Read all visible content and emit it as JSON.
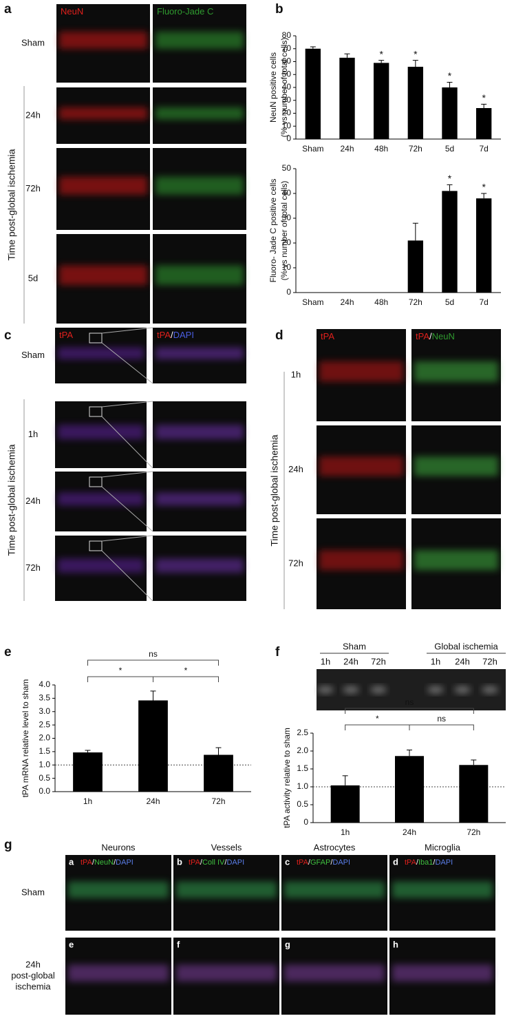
{
  "panel_labels": [
    "a",
    "b",
    "c",
    "d",
    "e",
    "f",
    "g"
  ],
  "panel_a": {
    "columns": [
      [
        "NeuN"
      ],
      [
        "Fluoro-Jade C"
      ]
    ],
    "column_colors": [
      [
        "#e0201c"
      ],
      [
        "#2f9a2f"
      ]
    ],
    "rows": [
      "Sham",
      "24h",
      "72h",
      "5d"
    ],
    "side_label": "Time post-global ischemia"
  },
  "panel_c": {
    "columns": [
      [
        "tPA"
      ],
      [
        "tPA",
        "/",
        "DAPI"
      ]
    ],
    "column_colors": [
      [
        "#e0201c"
      ],
      [
        "#e0201c",
        "#ffffff",
        "#4a5de0"
      ]
    ],
    "rows": [
      "Sham",
      "1h",
      "24h",
      "72h"
    ],
    "side_label": "Time post-global ischemia"
  },
  "panel_d": {
    "columns": [
      [
        "tPA"
      ],
      [
        "tPA",
        "/",
        "NeuN"
      ]
    ],
    "column_colors": [
      [
        "#e0201c"
      ],
      [
        "#e0201c",
        "#ffffff",
        "#2f9a2f"
      ]
    ],
    "rows": [
      "1h",
      "24h",
      "72h"
    ],
    "side_label": "Time post-global ischemia"
  },
  "panel_f_gel": {
    "groups": [
      "Sham",
      "Global ischemia"
    ],
    "lanes": [
      "1h",
      "24h",
      "72h",
      "1h",
      "24h",
      "72h"
    ]
  },
  "panel_g": {
    "columns": [
      "Neurons",
      "Vessels",
      "Astrocytes",
      "Microglia"
    ],
    "rows": [
      [
        "Sham"
      ],
      [
        "24h",
        "post-global",
        "ischemia"
      ]
    ],
    "subpanels": [
      "a",
      "b",
      "c",
      "d",
      "e",
      "f",
      "g",
      "h"
    ],
    "stains": [
      [
        "tPA",
        "/",
        "NeuN",
        "/",
        "DAPI"
      ],
      [
        "tPA",
        "/",
        "Coll IV",
        "/",
        "DAPI"
      ],
      [
        "tPA",
        "/",
        "GFAP",
        "/",
        "DAPI"
      ],
      [
        "tPA",
        "/",
        "Iba1",
        "/",
        "DAPI"
      ]
    ],
    "stain_colors": [
      "#e0201c",
      "#ffffff",
      "#3fbf3f",
      "#ffffff",
      "#5a7de8"
    ]
  },
  "chart_data": [
    {
      "type": "bar",
      "ylabel": [
        "NeuN positive cells",
        "(% vs number of total cells)"
      ],
      "categories": [
        "Sham",
        "24h",
        "48h",
        "72h",
        "5d",
        "7d"
      ],
      "values": [
        70,
        63,
        59,
        56,
        40,
        24
      ],
      "errors": [
        1.5,
        3,
        2,
        5,
        4,
        3
      ],
      "markers": [
        null,
        null,
        "*",
        "*",
        "*",
        "*"
      ],
      "color": "#000000",
      "ylim": [
        0,
        80
      ],
      "yticks": [
        0,
        10,
        20,
        30,
        40,
        50,
        60,
        70,
        80
      ]
    },
    {
      "type": "bar",
      "ylabel": [
        "Fluoro- Jade C positive cells",
        "(% vs number of total cells)"
      ],
      "categories": [
        "Sham",
        "24h",
        "48h",
        "72h",
        "5d",
        "7d"
      ],
      "values": [
        0,
        0,
        0,
        21,
        41,
        38
      ],
      "errors": [
        0,
        0,
        0,
        7,
        2.5,
        2
      ],
      "markers": [
        null,
        null,
        null,
        null,
        "*",
        "*"
      ],
      "color": "#000000",
      "ylim": [
        0,
        50
      ],
      "yticks": [
        0,
        10,
        20,
        30,
        40,
        50
      ]
    },
    {
      "type": "bar",
      "ylabel": [
        "tPA mRNA relative level to sham"
      ],
      "categories": [
        "1h",
        "24h",
        "72h"
      ],
      "values": [
        1.47,
        3.42,
        1.38
      ],
      "errors": [
        0.08,
        0.35,
        0.27
      ],
      "reference_line": 1,
      "brackets": [
        {
          "from": 0,
          "to": 1,
          "label": "*"
        },
        {
          "from": 1,
          "to": 2,
          "label": "*"
        },
        {
          "from": 0,
          "to": 2,
          "label": "ns"
        }
      ],
      "color": "#000000",
      "ylim": [
        0,
        4
      ],
      "yticks": [
        {
          "value": 0,
          "label": "0.0"
        },
        0.5,
        {
          "value": 1,
          "label": "1.0"
        },
        1.5,
        {
          "value": 2,
          "label": "2.0"
        },
        2.5,
        {
          "value": 3,
          "label": "3.0"
        },
        3.5,
        {
          "value": 4,
          "label": "4.0"
        }
      ]
    },
    {
      "type": "bar",
      "ylabel": [
        "tPA activity relative to sham"
      ],
      "categories": [
        "1h",
        "24h",
        "72h"
      ],
      "values": [
        1.04,
        1.86,
        1.61
      ],
      "errors": [
        0.27,
        0.17,
        0.14
      ],
      "reference_line": 1,
      "brackets": [
        {
          "from": 0,
          "to": 1,
          "label": "*"
        },
        {
          "from": 1,
          "to": 2,
          "label": "ns"
        },
        {
          "from": 0,
          "to": 2,
          "label": "ns"
        }
      ],
      "color": "#000000",
      "ylim": [
        0,
        2.5
      ],
      "yticks": [
        0,
        0.5,
        {
          "value": 1,
          "label": "1.0"
        },
        1.5,
        {
          "value": 2,
          "label": "2.0"
        },
        2.5
      ]
    }
  ]
}
